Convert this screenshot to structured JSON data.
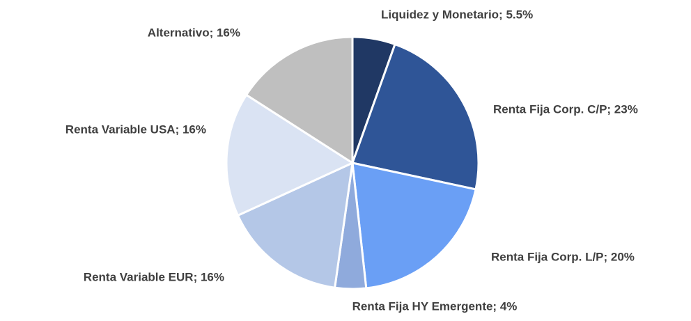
{
  "chart_data": {
    "type": "pie",
    "values": [
      5.5,
      23,
      20,
      4,
      16,
      16,
      16
    ],
    "value_labels": [
      "Liquidez y Monetario; 5.5%",
      "Renta Fija Corp. C/P; 23%",
      "Renta Fija Corp. L/P; 20%",
      "Renta Fija HY Emergente; 4%",
      "Renta Variable EUR; 16%",
      "Renta Variable USA; 16%",
      "Alternativo; 16%"
    ],
    "colors": [
      "#203864",
      "#2f5597",
      "#6a9ff5",
      "#8faadc",
      "#b4c7e7",
      "#dae3f3",
      "#bfbfbf"
    ]
  }
}
